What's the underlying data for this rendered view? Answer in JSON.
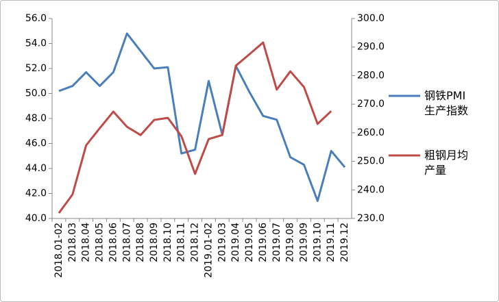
{
  "chart_data": {
    "type": "line",
    "categories": [
      "2018.01-02",
      "2018.03",
      "2018.04",
      "2018.05",
      "2018.06",
      "2018.07",
      "2018.08",
      "2018.09",
      "2018.10",
      "2018.11",
      "2018.12",
      "2019.01-02",
      "2019.03",
      "2019.04",
      "2019.05",
      "2019.06",
      "2019.07",
      "2019.08",
      "2019.09",
      "2019.10",
      "2019.11",
      "2019.12"
    ],
    "series": [
      {
        "name": "钢铁PMI生产指数",
        "color": "#4a7ebb",
        "values": [
          50.2,
          50.6,
          51.7,
          50.6,
          51.7,
          54.8,
          53.4,
          52.0,
          52.1,
          45.2,
          45.5,
          51.0,
          46.7,
          52.2,
          50.1,
          48.2,
          47.9,
          44.9,
          44.3,
          41.4,
          45.4,
          44.1
        ]
      },
      {
        "name": "粗钢月均产量",
        "color": "#be4b48",
        "axis": "y2",
        "values": [
          231.9,
          238.4,
          255.6,
          261.6,
          267.4,
          262.1,
          259.2,
          264.5,
          265.2,
          258.8,
          245.6,
          257.8,
          259.2,
          283.5,
          287.5,
          291.6,
          275.1,
          281.5,
          276.0,
          263.1,
          267.6,
          null
        ]
      }
    ],
    "ylim": [
      40,
      56
    ],
    "yticks": [
      {
        "value": 40,
        "label": "40.0"
      },
      {
        "value": 42,
        "label": "42.0"
      },
      {
        "value": 44,
        "label": "44.0"
      },
      {
        "value": 46,
        "label": "46.0"
      },
      {
        "value": 48,
        "label": "48.0"
      },
      {
        "value": 50,
        "label": "50.0"
      },
      {
        "value": 52,
        "label": "52.0"
      },
      {
        "value": 54,
        "label": "54.0"
      },
      {
        "value": 56,
        "label": "56.0"
      }
    ],
    "y2lim": [
      230,
      300
    ],
    "y2ticks": [
      {
        "value": 230,
        "label": "230.0"
      },
      {
        "value": 240,
        "label": "240.0"
      },
      {
        "value": 250,
        "label": "250.0"
      },
      {
        "value": 260,
        "label": "260.0"
      },
      {
        "value": 270,
        "label": "270.0"
      },
      {
        "value": 280,
        "label": "280.0"
      },
      {
        "value": 290,
        "label": "290.0"
      },
      {
        "value": 300,
        "label": "300.0"
      }
    ],
    "legend": "right"
  }
}
